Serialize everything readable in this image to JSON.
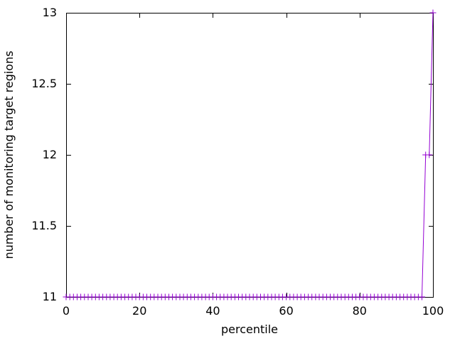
{
  "figure": {
    "background_color": "#ffffff",
    "axis_color": "#000000",
    "text_color": "#000000"
  },
  "chart_data": {
    "type": "line",
    "title": "",
    "xlabel": "percentile",
    "ylabel": "number of monitoring target regions",
    "xlim": [
      0,
      100
    ],
    "ylim": [
      11,
      13
    ],
    "grid": false,
    "legend": "none",
    "x_ticks": [
      0,
      20,
      40,
      60,
      80,
      100
    ],
    "x_tick_labels": [
      "0",
      "20",
      "40",
      "60",
      "80",
      "100"
    ],
    "y_ticks": [
      11,
      11.5,
      12,
      12.5,
      13
    ],
    "y_tick_labels": [
      "11",
      "11.5",
      "12",
      "12.5",
      "13"
    ],
    "series": [
      {
        "name": "number of monitoring target regions",
        "color": "#9400d3",
        "marker": "plus",
        "style": "linespoints",
        "x": [
          0,
          1,
          2,
          3,
          4,
          5,
          6,
          7,
          8,
          9,
          10,
          11,
          12,
          13,
          14,
          15,
          16,
          17,
          18,
          19,
          20,
          21,
          22,
          23,
          24,
          25,
          26,
          27,
          28,
          29,
          30,
          31,
          32,
          33,
          34,
          35,
          36,
          37,
          38,
          39,
          40,
          41,
          42,
          43,
          44,
          45,
          46,
          47,
          48,
          49,
          50,
          51,
          52,
          53,
          54,
          55,
          56,
          57,
          58,
          59,
          60,
          61,
          62,
          63,
          64,
          65,
          66,
          67,
          68,
          69,
          70,
          71,
          72,
          73,
          74,
          75,
          76,
          77,
          78,
          79,
          80,
          81,
          82,
          83,
          84,
          85,
          86,
          87,
          88,
          89,
          90,
          91,
          92,
          93,
          94,
          95,
          96,
          97,
          98,
          99,
          100
        ],
        "y": [
          11,
          11,
          11,
          11,
          11,
          11,
          11,
          11,
          11,
          11,
          11,
          11,
          11,
          11,
          11,
          11,
          11,
          11,
          11,
          11,
          11,
          11,
          11,
          11,
          11,
          11,
          11,
          11,
          11,
          11,
          11,
          11,
          11,
          11,
          11,
          11,
          11,
          11,
          11,
          11,
          11,
          11,
          11,
          11,
          11,
          11,
          11,
          11,
          11,
          11,
          11,
          11,
          11,
          11,
          11,
          11,
          11,
          11,
          11,
          11,
          11,
          11,
          11,
          11,
          11,
          11,
          11,
          11,
          11,
          11,
          11,
          11,
          11,
          11,
          11,
          11,
          11,
          11,
          11,
          11,
          11,
          11,
          11,
          11,
          11,
          11,
          11,
          11,
          11,
          11,
          11,
          11,
          11,
          11,
          11,
          11,
          11,
          11,
          12,
          12,
          13
        ]
      }
    ]
  }
}
